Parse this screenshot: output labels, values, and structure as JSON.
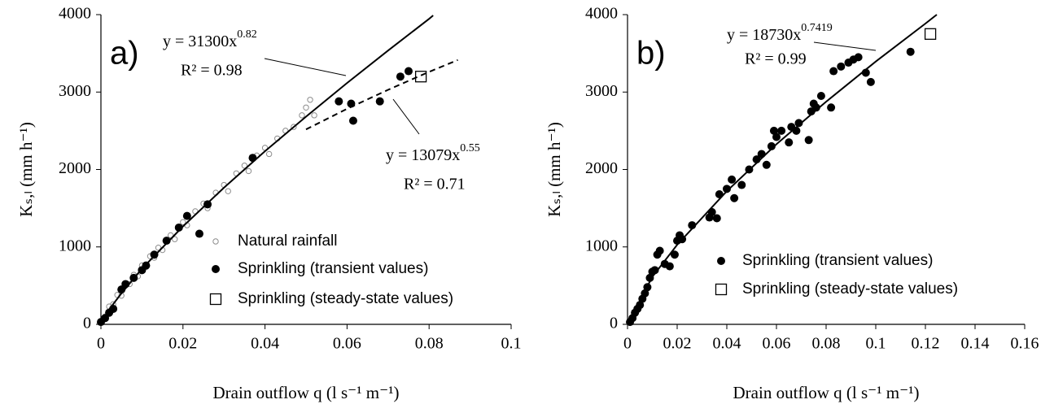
{
  "chart_data": [
    {
      "type": "scatter",
      "panel_label": "a)",
      "xlabel": "Drain outflow q (l s⁻¹ m⁻¹)",
      "ylabel": "Kₛ,ₗ (mm h⁻¹)",
      "xlim": [
        0,
        0.1
      ],
      "ylim": [
        0,
        4000
      ],
      "xticks": [
        0,
        0.02,
        0.04,
        0.06,
        0.08,
        0.1
      ],
      "yticks": [
        0,
        1000,
        2000,
        3000,
        4000
      ],
      "series": [
        {
          "name": "Natural rainfall",
          "color": "#8c8c8c",
          "marker": "circle-open",
          "x": [
            0.001,
            0.002,
            0.003,
            0.004,
            0.005,
            0.006,
            0.007,
            0.008,
            0.009,
            0.01,
            0.011,
            0.012,
            0.013,
            0.014,
            0.015,
            0.017,
            0.018,
            0.02,
            0.021,
            0.023,
            0.025,
            0.026,
            0.028,
            0.03,
            0.031,
            0.033,
            0.035,
            0.036,
            0.038,
            0.04,
            0.041,
            0.043,
            0.045,
            0.047,
            0.049,
            0.05,
            0.051,
            0.052
          ],
          "values": [
            100,
            230,
            260,
            380,
            370,
            500,
            520,
            640,
            620,
            760,
            740,
            880,
            860,
            990,
            960,
            1150,
            1100,
            1320,
            1280,
            1460,
            1560,
            1500,
            1700,
            1800,
            1720,
            1950,
            2050,
            1980,
            2180,
            2280,
            2200,
            2400,
            2500,
            2550,
            2700,
            2800,
            2900,
            2700
          ]
        },
        {
          "name": "Sprinkling (transient values)",
          "color": "#000000",
          "marker": "circle-filled",
          "x": [
            0,
            0.001,
            0.002,
            0.003,
            0.005,
            0.006,
            0.008,
            0.01,
            0.011,
            0.013,
            0.016,
            0.019,
            0.021,
            0.024,
            0.026,
            0.037,
            0.058,
            0.061,
            0.0615,
            0.068,
            0.073,
            0.075,
            0.078
          ],
          "values": [
            30,
            80,
            150,
            200,
            450,
            520,
            600,
            700,
            760,
            900,
            1080,
            1250,
            1400,
            1170,
            1550,
            2150,
            2880,
            2850,
            2630,
            2880,
            3200,
            3270,
            3200
          ]
        },
        {
          "name": "Sprinkling (steady-state values)",
          "color": "#000000",
          "marker": "square-open",
          "x": [
            0.078
          ],
          "values": [
            3200
          ]
        }
      ],
      "fits": [
        {
          "color": "#000000",
          "dash": false,
          "x": [
            0,
            0.002,
            0.005,
            0.01,
            0.02,
            0.03,
            0.04,
            0.05,
            0.06,
            0.07,
            0.08,
            0.081
          ],
          "values": [
            0,
            192,
            400,
            718,
            1265,
            1765,
            2236,
            2682,
            3117,
            3536,
            3945,
            3990
          ]
        },
        {
          "color": "#000000",
          "dash": true,
          "x": [
            0.05,
            0.06,
            0.07,
            0.08,
            0.087
          ],
          "values": [
            2518,
            2783,
            3029,
            3261,
            3414
          ]
        }
      ],
      "annotations": [
        {
          "equation": "y = 31300x",
          "exponent": "0.82",
          "r2": "R² = 0.98"
        },
        {
          "equation": "y = 13079x",
          "exponent": "0.55",
          "r2": "R² = 0.71"
        }
      ]
    },
    {
      "type": "scatter",
      "panel_label": "b)",
      "xlabel": "Drain outflow q (l s⁻¹ m⁻¹)",
      "ylabel": "Kₛ,ₗ (mm h⁻¹)",
      "xlim": [
        0,
        0.16
      ],
      "ylim": [
        0,
        4000
      ],
      "xticks": [
        0,
        0.02,
        0.04,
        0.06,
        0.08,
        0.1,
        0.12,
        0.14,
        0.16
      ],
      "yticks": [
        0,
        1000,
        2000,
        3000,
        4000
      ],
      "series": [
        {
          "name": "Sprinkling (transient values)",
          "color": "#000000",
          "marker": "circle-filled",
          "x": [
            0.001,
            0.002,
            0.003,
            0.004,
            0.005,
            0.006,
            0.007,
            0.008,
            0.009,
            0.01,
            0.011,
            0.012,
            0.013,
            0.015,
            0.017,
            0.019,
            0.02,
            0.021,
            0.022,
            0.026,
            0.033,
            0.034,
            0.036,
            0.037,
            0.04,
            0.042,
            0.043,
            0.046,
            0.049,
            0.052,
            0.054,
            0.056,
            0.058,
            0.059,
            0.06,
            0.062,
            0.065,
            0.066,
            0.068,
            0.069,
            0.073,
            0.074,
            0.075,
            0.076,
            0.078,
            0.082,
            0.083,
            0.086,
            0.089,
            0.091,
            0.093,
            0.096,
            0.098,
            0.114,
            0.122
          ],
          "values": [
            30,
            80,
            150,
            200,
            250,
            330,
            400,
            480,
            600,
            680,
            700,
            900,
            950,
            780,
            750,
            900,
            1080,
            1150,
            1100,
            1280,
            1380,
            1450,
            1370,
            1680,
            1750,
            1870,
            1630,
            1800,
            2000,
            2130,
            2200,
            2060,
            2300,
            2500,
            2420,
            2500,
            2350,
            2550,
            2500,
            2600,
            2380,
            2750,
            2850,
            2800,
            2950,
            2800,
            3270,
            3330,
            3380,
            3420,
            3450,
            3250,
            3130,
            3520,
            3750
          ]
        },
        {
          "name": "Sprinkling (steady-state values)",
          "color": "#000000",
          "marker": "square-open",
          "x": [
            0.122
          ],
          "values": [
            3750
          ]
        }
      ],
      "fits": [
        {
          "color": "#000000",
          "dash": false,
          "x": [
            0,
            0.01,
            0.02,
            0.04,
            0.06,
            0.08,
            0.1,
            0.12,
            0.1246
          ],
          "values": [
            0,
            614,
            1028,
            1720,
            2326,
            2876,
            3394,
            3885,
            4000
          ]
        }
      ],
      "annotations": [
        {
          "equation": "y = 18730x",
          "exponent": "0.7419",
          "r2": "R² = 0.99"
        }
      ]
    }
  ]
}
